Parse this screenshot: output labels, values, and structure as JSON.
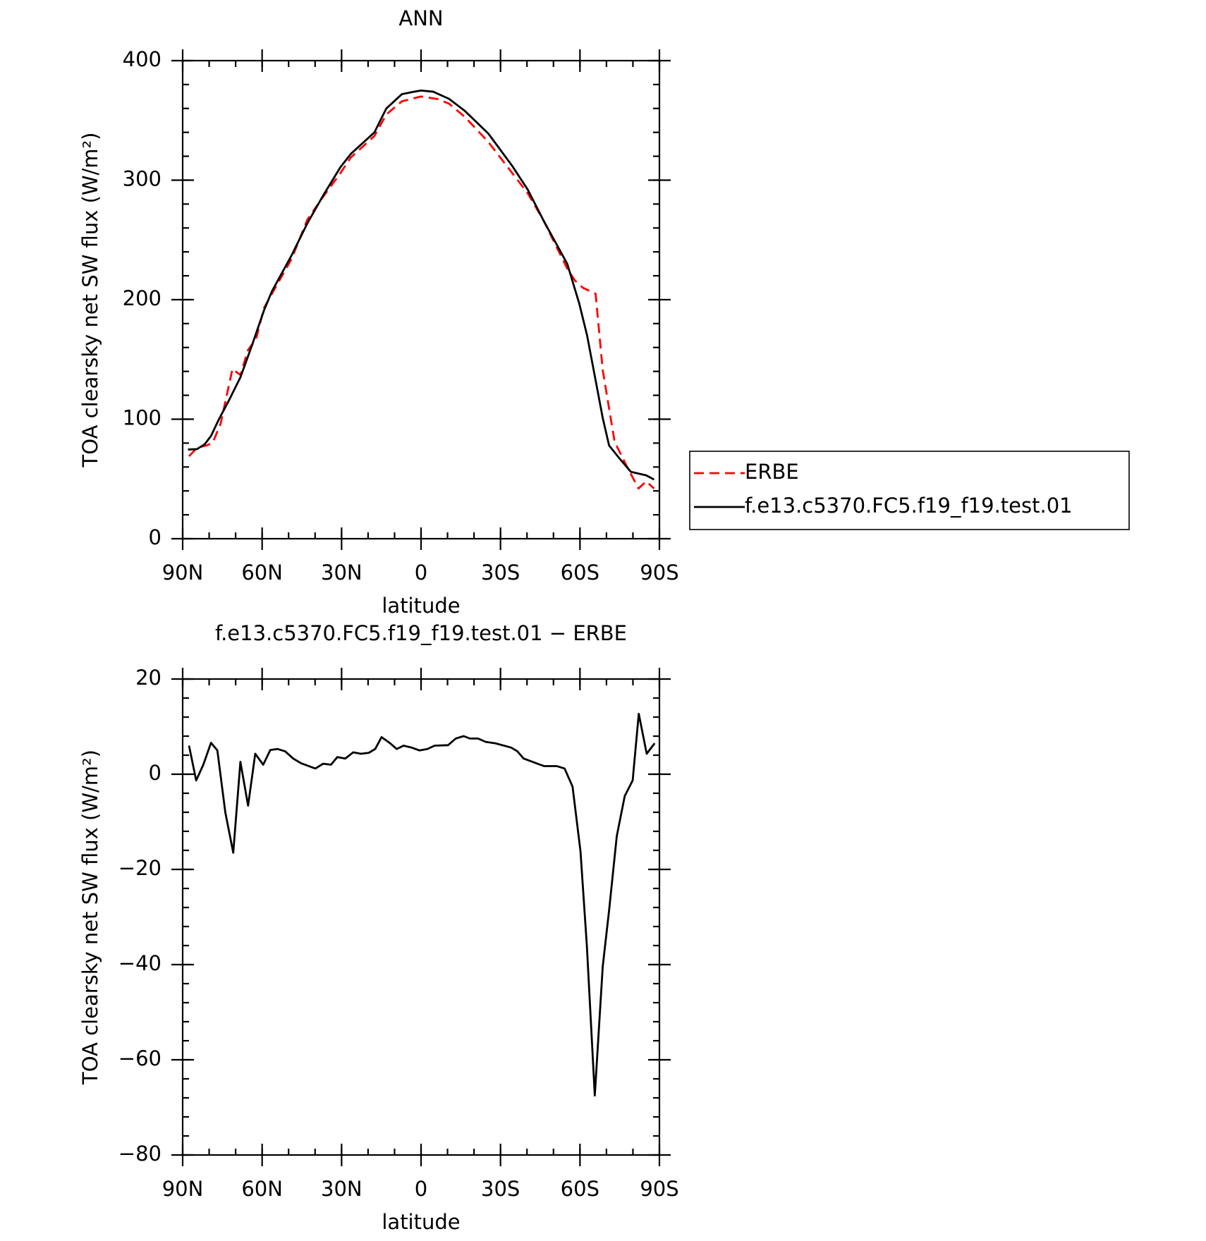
{
  "chart_data": [
    {
      "type": "line",
      "title": "ANN",
      "x_label": "latitude",
      "y_label": "TOA clearsky net SW flux (W/m²)",
      "xlim": [
        90,
        -90
      ],
      "xticks": [
        {
          "value": 90,
          "label": "90N"
        },
        {
          "value": 60,
          "label": "60N"
        },
        {
          "value": 30,
          "label": "30N"
        },
        0,
        {
          "value": -30,
          "label": "30S"
        },
        {
          "value": -60,
          "label": "60S"
        },
        {
          "value": -90,
          "label": "90S"
        }
      ],
      "ylim": [
        0,
        400
      ],
      "yticks": [
        0,
        100,
        200,
        300,
        400
      ],
      "legend": "right",
      "series": [
        {
          "name": "ERBE",
          "color": "#ff0000",
          "dash": true,
          "x": [
            87.6,
            84.6,
            81,
            78.7,
            75.7,
            71.2,
            68.2,
            65.3,
            62.3,
            59.3,
            56.3,
            48.9,
            42.9,
            37,
            30.4,
            26.5,
            17.6,
            13.1,
            7.2,
            0,
            -6,
            -10.6,
            -16.5,
            -25.4,
            -34.4,
            -40.3,
            -46.3,
            -55.2,
            -58.1,
            -61.1,
            -65.9,
            -68.6,
            -73.1,
            -77.6,
            -82.1,
            -85,
            -88
          ],
          "values": [
            69,
            76,
            78,
            80,
            96,
            142,
            137,
            158,
            167,
            193,
            205,
            234,
            267,
            286,
            306,
            319,
            337,
            355,
            366,
            370,
            368,
            364,
            353,
            332,
            306,
            289,
            266,
            226,
            216,
            210,
            205,
            141,
            81,
            61,
            42,
            48,
            42
          ]
        },
        {
          "name": "f.e13.c5370.FC5.f19_f19.test.01",
          "color": "#000000",
          "dash": false,
          "x": [
            88,
            84.6,
            81.7,
            79.3,
            76.3,
            72.7,
            68.2,
            63.8,
            59.3,
            56.3,
            48.9,
            42.9,
            37,
            30.4,
            26.5,
            17.6,
            13.1,
            7.2,
            2.7,
            0,
            -4.6,
            -10.6,
            -16.5,
            -25.4,
            -34.4,
            -40.3,
            -46.3,
            -55.2,
            -59.7,
            -62.7,
            -68.6,
            -71,
            -74.6,
            -79.2,
            -85,
            -88
          ],
          "values": [
            74.6,
            75,
            79,
            86,
            100,
            115,
            135,
            162,
            191,
            207,
            237,
            264,
            287,
            311,
            322,
            340,
            360,
            372,
            374,
            375,
            374,
            368,
            358,
            339,
            312,
            292,
            266,
            230,
            197,
            170,
            101,
            78,
            68,
            56,
            53,
            49.5
          ]
        }
      ]
    },
    {
      "type": "line",
      "title": "f.e13.c5370.FC5.f19_f19.test.01 − ERBE",
      "x_label": "latitude",
      "y_label": "TOA clearsky net SW flux (W/m²)",
      "xlim": [
        90,
        -90
      ],
      "xticks": [
        {
          "value": 90,
          "label": "90N"
        },
        {
          "value": 60,
          "label": "60N"
        },
        {
          "value": 30,
          "label": "30N"
        },
        0,
        {
          "value": -30,
          "label": "30S"
        },
        {
          "value": -60,
          "label": "60S"
        },
        {
          "value": -90,
          "label": "90S"
        }
      ],
      "ylim": [
        -80,
        20
      ],
      "yticks": [
        {
          "value": -80,
          "label": "−80"
        },
        {
          "value": -60,
          "label": "−60"
        },
        {
          "value": -40,
          "label": "−40"
        },
        {
          "value": -20,
          "label": "−20"
        },
        0,
        20
      ],
      "series": [
        {
          "color": "#000000",
          "dash": false,
          "x": [
            87.6,
            84.9,
            82.2,
            79.3,
            76.9,
            73.9,
            70.9,
            68.2,
            65.3,
            62.6,
            59.6,
            56.9,
            54.2,
            51.3,
            48.3,
            45.3,
            39.9,
            37,
            34,
            31.6,
            28.6,
            25.6,
            22.7,
            19.7,
            17.3,
            14.9,
            11.9,
            9.2,
            6.6,
            3.6,
            0.6,
            -2.4,
            -5.1,
            -10.2,
            -13.1,
            -16.1,
            -18.5,
            -21.5,
            -24.4,
            -28,
            -34,
            -36.4,
            -38.7,
            -43.5,
            -46.5,
            -51.3,
            -54.2,
            -57.2,
            -60.2,
            -62.6,
            -65.6,
            -68.6,
            -71,
            -73.9,
            -76.9,
            -79.9,
            -82.2,
            -85.2,
            -88.2
          ],
          "values": [
            6,
            -1.3,
            2,
            6.6,
            5,
            -8,
            -16.5,
            2.6,
            -6.6,
            4.3,
            2,
            5.1,
            5.3,
            4.8,
            3.3,
            2.3,
            1.2,
            2.2,
            2,
            3.6,
            3.3,
            4.6,
            4.3,
            4.5,
            5.3,
            7.8,
            6.6,
            5.3,
            6,
            5.6,
            5,
            5.3,
            6,
            6.1,
            7.5,
            8,
            7.5,
            7.5,
            6.8,
            6.5,
            5.6,
            4.8,
            3.3,
            2.3,
            1.7,
            1.7,
            1.2,
            -2.6,
            -16.2,
            -36,
            -67.5,
            -40.4,
            -28.6,
            -13,
            -4.6,
            -1.3,
            12.7,
            4.3,
            6.5
          ]
        }
      ]
    }
  ]
}
